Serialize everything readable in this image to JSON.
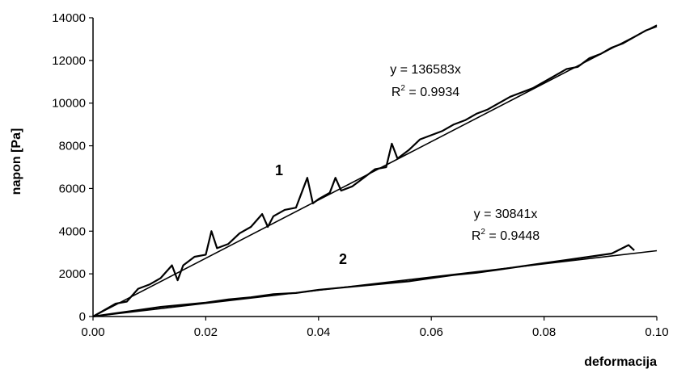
{
  "chart_data": {
    "type": "line",
    "xlabel": "deformacija",
    "ylabel": "napon [Pa]",
    "xlim": [
      0,
      0.1
    ],
    "ylim": [
      0,
      14000
    ],
    "x_ticks": [
      "0.00",
      "0.02",
      "0.04",
      "0.06",
      "0.08",
      "0.10"
    ],
    "y_ticks": [
      "0",
      "2000",
      "4000",
      "6000",
      "8000",
      "10000",
      "12000",
      "14000"
    ],
    "grid": false,
    "series": [
      {
        "label": "1",
        "slope": 136583,
        "x": [
          0.0,
          0.002,
          0.004,
          0.006,
          0.008,
          0.01,
          0.012,
          0.014,
          0.015,
          0.016,
          0.018,
          0.02,
          0.021,
          0.022,
          0.024,
          0.026,
          0.028,
          0.03,
          0.031,
          0.032,
          0.034,
          0.036,
          0.038,
          0.039,
          0.04,
          0.042,
          0.043,
          0.044,
          0.046,
          0.048,
          0.05,
          0.052,
          0.053,
          0.054,
          0.056,
          0.058,
          0.06,
          0.062,
          0.064,
          0.066,
          0.068,
          0.07,
          0.072,
          0.074,
          0.076,
          0.078,
          0.08,
          0.082,
          0.084,
          0.086,
          0.088,
          0.09,
          0.092,
          0.094,
          0.096,
          0.098,
          0.1
        ],
        "y": [
          0,
          300,
          600,
          700,
          1300,
          1500,
          1800,
          2400,
          1700,
          2400,
          2800,
          2900,
          4000,
          3200,
          3400,
          3900,
          4200,
          4800,
          4200,
          4700,
          5000,
          5100,
          6500,
          5300,
          5500,
          5800,
          6500,
          5900,
          6100,
          6500,
          6900,
          7000,
          8100,
          7400,
          7800,
          8300,
          8500,
          8700,
          9000,
          9200,
          9500,
          9700,
          10000,
          10300,
          10500,
          10700,
          11000,
          11300,
          11600,
          11700,
          12100,
          12300,
          12600,
          12800,
          13100,
          13400,
          13600
        ],
        "fit_label": "y = 136583x",
        "r2_prefix": "R",
        "r2_sup": "2",
        "r2_value": " = 0.9934"
      },
      {
        "label": "2",
        "slope": 30841,
        "x": [
          0.0,
          0.004,
          0.008,
          0.012,
          0.016,
          0.02,
          0.024,
          0.028,
          0.032,
          0.036,
          0.04,
          0.044,
          0.048,
          0.052,
          0.056,
          0.06,
          0.064,
          0.068,
          0.072,
          0.076,
          0.08,
          0.084,
          0.088,
          0.092,
          0.095,
          0.096
        ],
        "y": [
          0,
          150,
          300,
          450,
          550,
          650,
          800,
          900,
          1050,
          1100,
          1250,
          1350,
          1450,
          1550,
          1650,
          1800,
          1950,
          2050,
          2200,
          2350,
          2500,
          2650,
          2800,
          2950,
          3350,
          3100
        ],
        "fit_label": "y = 30841x",
        "r2_prefix": "R",
        "r2_sup": "2",
        "r2_value": " = 0.9448"
      }
    ]
  }
}
